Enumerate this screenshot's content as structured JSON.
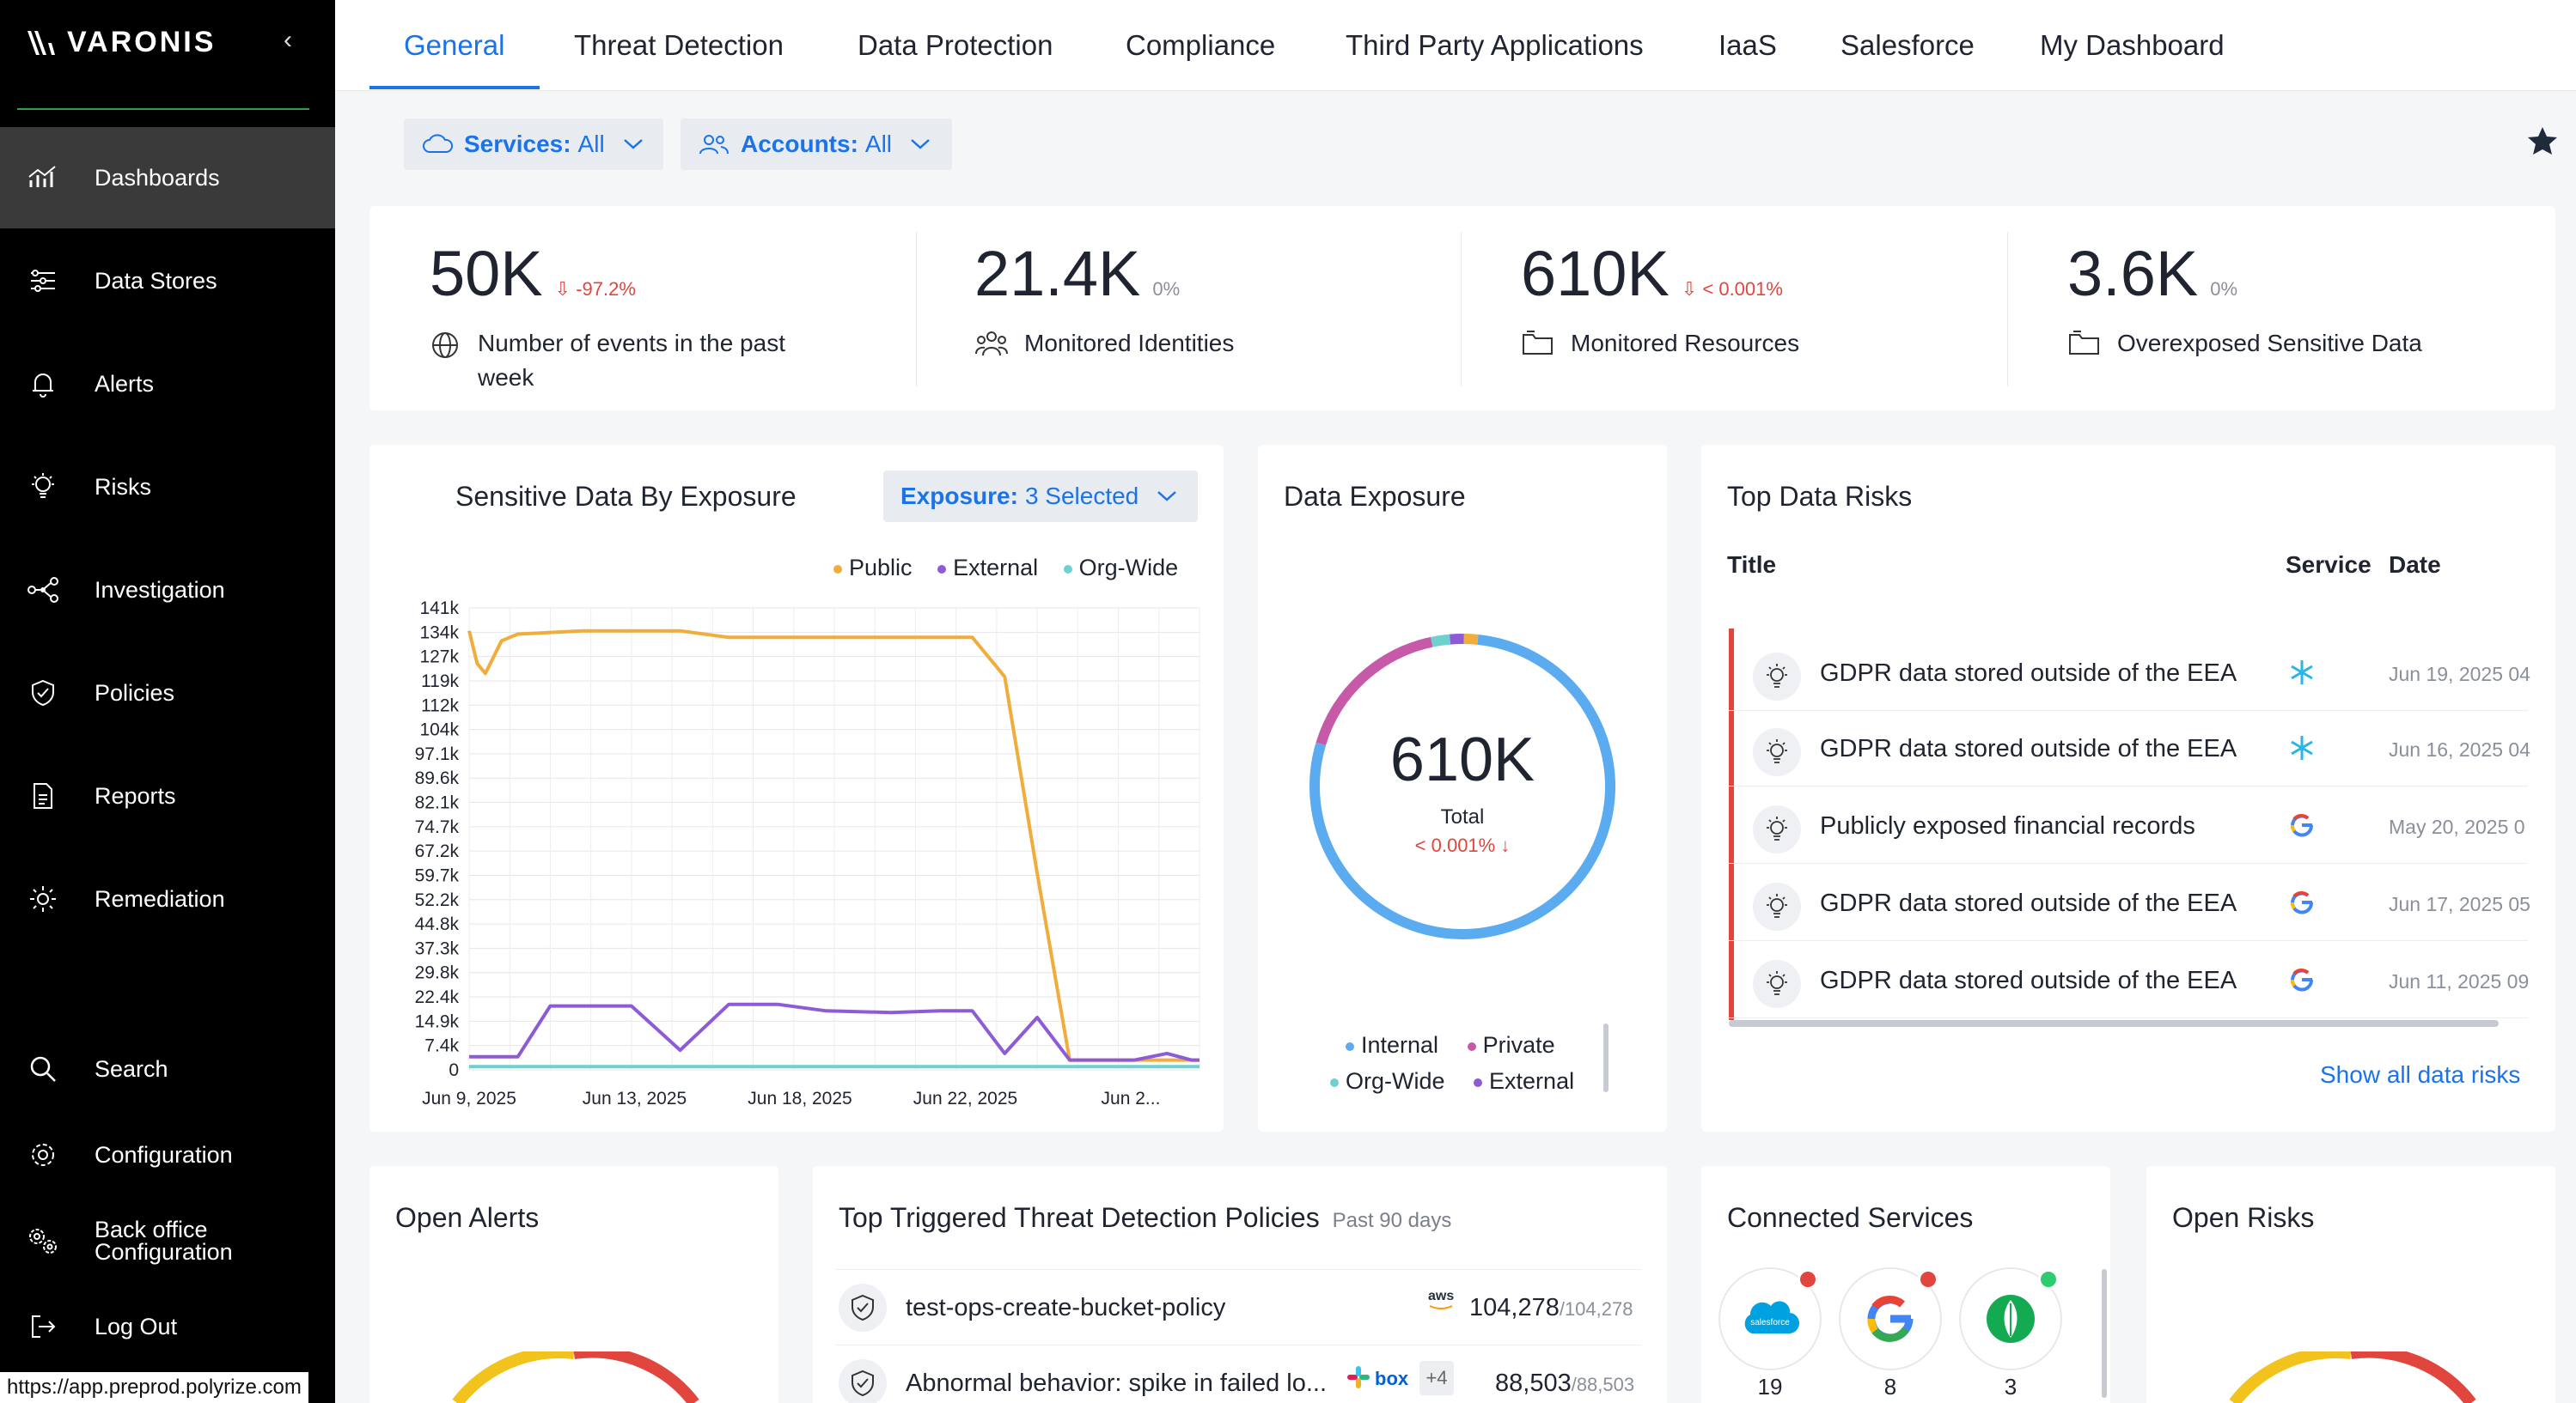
{
  "sidebar": {
    "brand": "VARONIS",
    "items": [
      {
        "label": "Dashboards",
        "icon": "dashboard-icon"
      },
      {
        "label": "Data Stores",
        "icon": "data-stores-icon"
      },
      {
        "label": "Alerts",
        "icon": "bell-icon"
      },
      {
        "label": "Risks",
        "icon": "lightbulb-icon"
      },
      {
        "label": "Investigation",
        "icon": "graph-icon"
      },
      {
        "label": "Policies",
        "icon": "shield-icon"
      },
      {
        "label": "Reports",
        "icon": "document-icon"
      },
      {
        "label": "Remediation",
        "icon": "sun-icon"
      }
    ],
    "bottom_items": [
      {
        "label": "Search",
        "icon": "search-icon"
      },
      {
        "label": "Configuration",
        "icon": "gear-icon"
      },
      {
        "label": "Back office Configuration",
        "icon": "gears-icon"
      },
      {
        "label": "Log Out",
        "icon": "logout-icon"
      }
    ]
  },
  "url": "https://app.preprod.polyrize.com",
  "tabs": [
    "General",
    "Threat Detection",
    "Data Protection",
    "Compliance",
    "Third Party Applications",
    "IaaS",
    "Salesforce",
    "My Dashboard"
  ],
  "filters": {
    "services_label": "Services:",
    "services_value": "All",
    "accounts_label": "Accounts:",
    "accounts_value": "All"
  },
  "stats": [
    {
      "value": "50K",
      "delta": "-97.2%",
      "label": "Number of events in the past week",
      "trend": "down"
    },
    {
      "value": "21.4K",
      "delta": "0%",
      "label": "Monitored Identities",
      "trend": "flat"
    },
    {
      "value": "610K",
      "delta": "< 0.001%",
      "label": "Monitored Resources",
      "trend": "down"
    },
    {
      "value": "3.6K",
      "delta": "0%",
      "label": "Overexposed Sensitive Data",
      "trend": "flat"
    }
  ],
  "sensitive": {
    "title": "Sensitive Data By Exposure",
    "exposure_label": "Exposure:",
    "exposure_value": "3 Selected"
  },
  "data_exposure": {
    "title": "Data Exposure",
    "total": "610K",
    "total_label": "Total",
    "delta": "< 0.001% ↓",
    "legend": [
      "Internal",
      "Private",
      "Org-Wide",
      "External"
    ]
  },
  "top_risks": {
    "title": "Top Data Risks",
    "col_title": "Title",
    "col_service": "Service",
    "col_date": "Date",
    "rows": [
      {
        "title": "GDPR data stored outside of the EEA",
        "service": "snowflake-icon",
        "date": "Jun 19, 2025 04"
      },
      {
        "title": "GDPR data stored outside of the EEA",
        "service": "snowflake-icon",
        "date": "Jun 16, 2025 04"
      },
      {
        "title": "Publicly exposed financial records",
        "service": "google-icon",
        "date": "May 20, 2025 0"
      },
      {
        "title": "GDPR data stored outside of the EEA",
        "service": "google-icon",
        "date": "Jun 17, 2025 05"
      },
      {
        "title": "GDPR data stored outside of the EEA",
        "service": "google-icon",
        "date": "Jun 11, 2025 09"
      }
    ],
    "show_all": "Show all data risks"
  },
  "open_alerts": {
    "title": "Open Alerts"
  },
  "policies": {
    "title": "Top Triggered Threat Detection Policies",
    "subtitle": "Past 90 days",
    "rows": [
      {
        "name": "test-ops-create-bucket-policy",
        "count": "104,278",
        "total": "/104,278",
        "service": "aws-icon"
      },
      {
        "name": "Abnormal behavior: spike in failed lo...",
        "count": "88,503",
        "total": "/88,503",
        "service": "slack-box-icons",
        "extra": "+4"
      }
    ]
  },
  "connected": {
    "title": "Connected Services",
    "services": [
      {
        "name": "salesforce-icon",
        "count": "19",
        "status": "#e0463d"
      },
      {
        "name": "google-icon",
        "count": "8",
        "status": "#e0463d"
      },
      {
        "name": "mongodb-icon",
        "count": "3",
        "status": "#2ecc71"
      }
    ]
  },
  "open_risks": {
    "title": "Open Risks"
  },
  "colors": {
    "accent": "#1a73e8",
    "public": "#f0ad3c",
    "external": "#8e5bd6",
    "orgwide": "#6fd0d0",
    "internal": "#5aabf0",
    "private": "#c75aa8"
  },
  "chart_data": {
    "type": "line",
    "title": "Sensitive Data By Exposure",
    "x_ticks": [
      "Jun 9, 2025",
      "Jun 13, 2025",
      "Jun 18, 2025",
      "Jun 22, 2025",
      "Jun 2..."
    ],
    "y_ticks": [
      "141k",
      "134k",
      "127k",
      "119k",
      "112k",
      "104k",
      "97.1k",
      "89.6k",
      "82.1k",
      "74.7k",
      "67.2k",
      "59.7k",
      "52.2k",
      "44.8k",
      "37.3k",
      "29.8k",
      "22.4k",
      "14.9k",
      "7.4k",
      "0"
    ],
    "ylim": [
      0,
      141000
    ],
    "x": [
      0,
      0.5,
      1,
      2,
      3,
      5,
      7,
      9,
      10,
      13,
      16,
      19,
      22,
      26,
      29,
      31,
      33,
      35,
      37,
      40,
      41,
      43,
      44.5,
      45
    ],
    "series": [
      {
        "name": "Public",
        "values": [
          134000,
          124000,
          121000,
          131000,
          133000,
          133500,
          134000,
          134000,
          134000,
          134000,
          132000,
          132000,
          132000,
          132000,
          132000,
          132000,
          120000,
          60000,
          3000,
          3000,
          3000,
          3000,
          3000,
          3000
        ]
      },
      {
        "name": "External",
        "values": [
          4000,
          4000,
          4000,
          4000,
          4000,
          19500,
          19500,
          19500,
          19500,
          6000,
          20000,
          20000,
          18000,
          17500,
          18000,
          18000,
          5000,
          16000,
          3000,
          3000,
          3000,
          5000,
          3000,
          3000
        ]
      },
      {
        "name": "Org-Wide",
        "values": [
          1000,
          1000,
          1000,
          1000,
          1000,
          1000,
          1000,
          1000,
          1000,
          1000,
          1000,
          1000,
          1000,
          1000,
          1000,
          1000,
          1000,
          1000,
          1000,
          1000,
          1000,
          1000,
          1000,
          1000
        ]
      }
    ],
    "legend": [
      "Public",
      "External",
      "Org-Wide"
    ],
    "grid": true,
    "donut": [
      {
        "name": "Internal",
        "value": 78
      },
      {
        "name": "Private",
        "value": 17
      },
      {
        "name": "Org-Wide",
        "value": 2
      },
      {
        "name": "External",
        "value": 1.5
      },
      {
        "name": "Other",
        "value": 1.5
      }
    ]
  }
}
